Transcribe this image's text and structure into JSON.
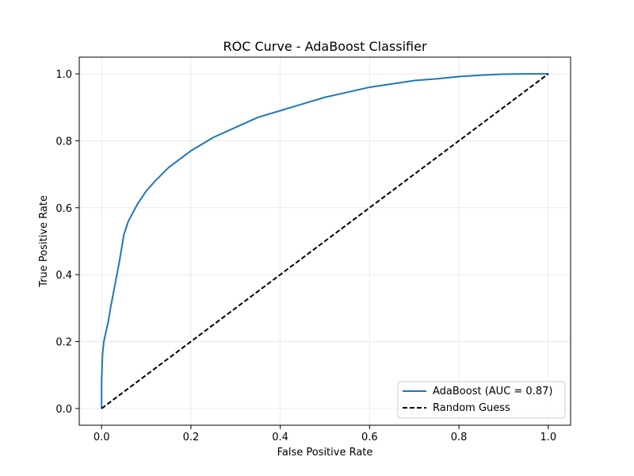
{
  "chart_data": {
    "type": "line",
    "title": "ROC Curve - AdaBoost Classifier",
    "xlabel": "False Positive Rate",
    "ylabel": "True Positive Rate",
    "xlim": [
      -0.05,
      1.05
    ],
    "ylim": [
      -0.05,
      1.05
    ],
    "xticks": [
      0.0,
      0.2,
      0.4,
      0.6,
      0.8,
      1.0
    ],
    "yticks": [
      0.0,
      0.2,
      0.4,
      0.6,
      0.8,
      1.0
    ],
    "xtick_labels": [
      "0.0",
      "0.2",
      "0.4",
      "0.6",
      "0.8",
      "1.0"
    ],
    "ytick_labels": [
      "0.0",
      "0.2",
      "0.4",
      "0.6",
      "0.8",
      "1.0"
    ],
    "grid": true,
    "legend_position": "lower-right",
    "series": [
      {
        "name": "AdaBoost (AUC = 0.87)",
        "color": "#1f77b4",
        "style": "solid",
        "x": [
          0.0,
          0.0,
          0.002,
          0.005,
          0.01,
          0.015,
          0.02,
          0.03,
          0.04,
          0.05,
          0.06,
          0.08,
          0.1,
          0.12,
          0.15,
          0.2,
          0.25,
          0.3,
          0.35,
          0.4,
          0.45,
          0.5,
          0.55,
          0.6,
          0.65,
          0.7,
          0.75,
          0.8,
          0.85,
          0.9,
          0.95,
          1.0
        ],
        "y": [
          0.0,
          0.08,
          0.16,
          0.2,
          0.23,
          0.26,
          0.3,
          0.37,
          0.44,
          0.52,
          0.56,
          0.61,
          0.65,
          0.68,
          0.72,
          0.77,
          0.81,
          0.84,
          0.87,
          0.89,
          0.91,
          0.93,
          0.945,
          0.96,
          0.97,
          0.98,
          0.985,
          0.992,
          0.996,
          0.999,
          1.0,
          1.0
        ]
      },
      {
        "name": "Random Guess",
        "color": "#000000",
        "style": "dashed",
        "x": [
          0.0,
          1.0
        ],
        "y": [
          0.0,
          1.0
        ]
      }
    ]
  }
}
